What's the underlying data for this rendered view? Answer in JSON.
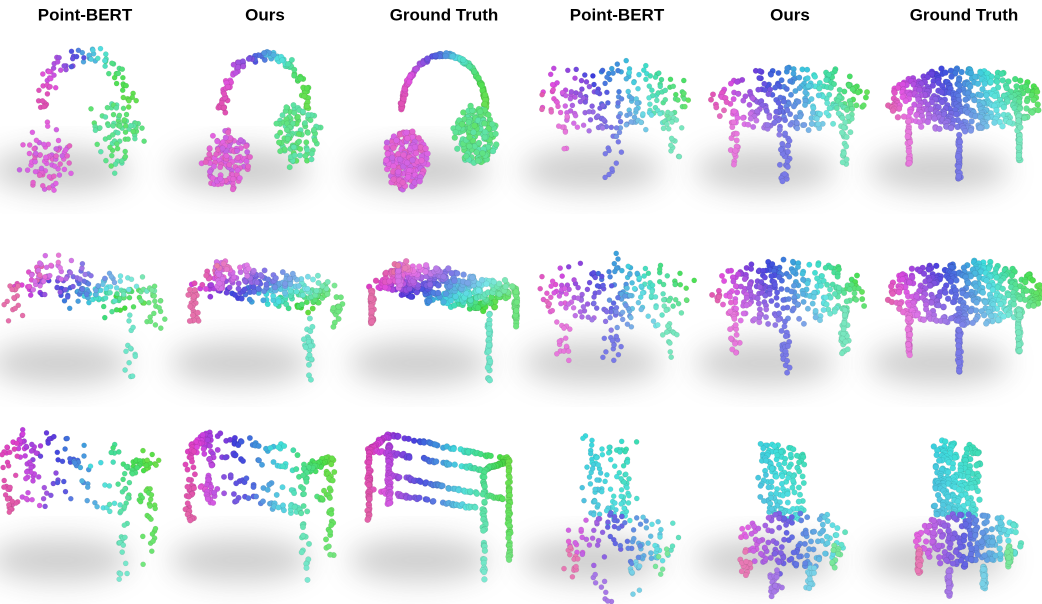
{
  "headers": [
    "Point-BERT",
    "Ours",
    "Ground Truth",
    "Point-BERT",
    "Ours",
    "Ground Truth"
  ]
}
